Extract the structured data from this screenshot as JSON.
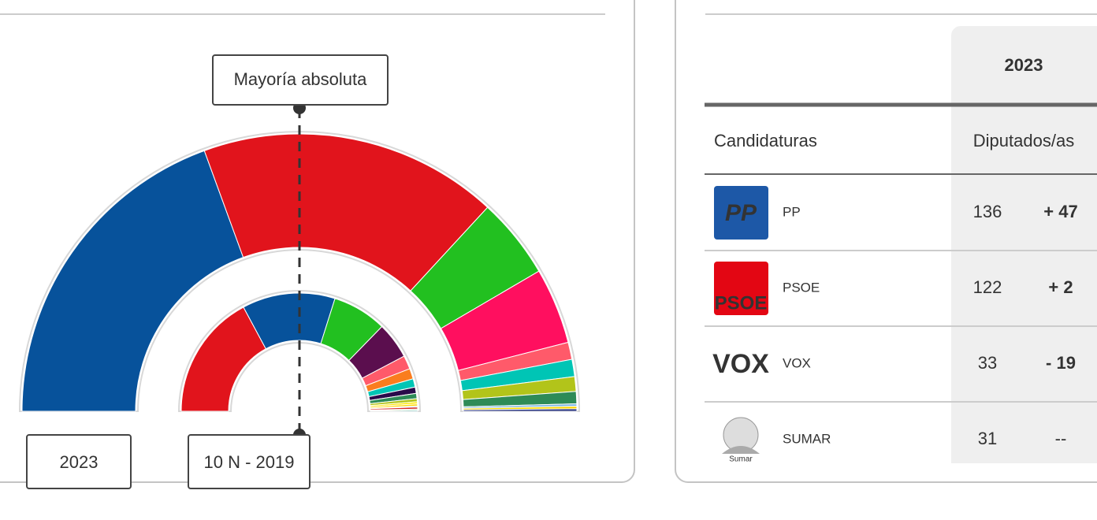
{
  "chart_data": {
    "type": "hemicycle",
    "annotation": "Mayoría absoluta",
    "series": [
      {
        "name": "2023",
        "values": [
          136,
          122,
          33,
          31,
          7,
          7,
          6,
          5,
          1,
          1,
          1
        ],
        "colors": [
          "#07529b",
          "#e1141c",
          "#22c020",
          "#ff0f5f",
          "#ff5a6a",
          "#00c5b5",
          "#b2c41a",
          "#2e8b57",
          "#7ab6e0",
          "#ffd700",
          "#1e2a78"
        ]
      },
      {
        "name": "10 N - 2019",
        "values": [
          120,
          89,
          52,
          35,
          13,
          10,
          8,
          6,
          5,
          3,
          2,
          2,
          1,
          2,
          1,
          1
        ],
        "colors": [
          "#e1141c",
          "#07529b",
          "#22c020",
          "#5b0e4e",
          "#ff5a6a",
          "#fa7d1e",
          "#00c5b5",
          "#2a0a4a",
          "#2e8b57",
          "#b2c41a",
          "#ffe800",
          "#ffd700",
          "#7ab6e0",
          "#d62828",
          "#6b8e23",
          "#00a0a0"
        ]
      }
    ]
  },
  "table": {
    "header": "2023",
    "columns": [
      "Candidaturas",
      "Diputados/as"
    ],
    "rows": [
      {
        "logo": "PP",
        "name": "PP",
        "seats": 136,
        "change": "+ 47",
        "change_color": "#5aa51f"
      },
      {
        "logo": "PSOE",
        "name": "PSOE",
        "seats": 122,
        "change": "+ 2",
        "change_color": "#5aa51f"
      },
      {
        "logo": "VOX",
        "name": "VOX",
        "seats": 33,
        "change": "- 19",
        "change_color": "#e0321c"
      },
      {
        "logo": "Sumar",
        "name": "SUMAR",
        "seats": 31,
        "change": "--",
        "change_color": "#555555"
      }
    ]
  }
}
